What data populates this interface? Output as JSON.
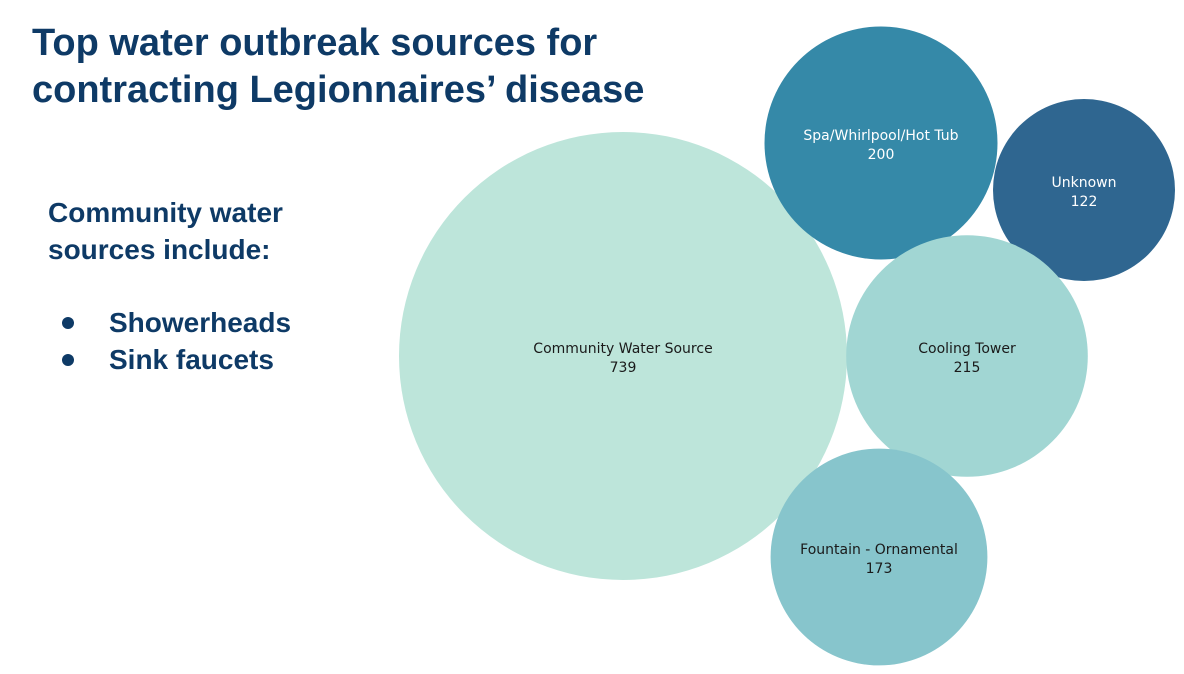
{
  "slide": {
    "title": "Top water outbreak sources for contracting Legionnaires’ disease",
    "side_heading": "Community water sources include:",
    "bullets": [
      "Showerheads",
      "Sink faucets"
    ]
  },
  "chart_data": {
    "type": "bubble",
    "title": "",
    "series": [
      {
        "name": "Community Water Source",
        "value": 739,
        "color": "#bde5da",
        "text_color": "#1a1a1a"
      },
      {
        "name": "Spa/Whirlpool/Hot Tub",
        "value": 200,
        "color": "#3589a8",
        "text_color": "#ffffff"
      },
      {
        "name": "Unknown",
        "value": 122,
        "color": "#2f6690",
        "text_color": "#ffffff"
      },
      {
        "name": "Cooling Tower",
        "value": 215,
        "color": "#a1d6d3",
        "text_color": "#1a1a1a"
      },
      {
        "name": "Fountain - Ornamental",
        "value": 173,
        "color": "#87c5cc",
        "text_color": "#1a1a1a"
      }
    ]
  }
}
